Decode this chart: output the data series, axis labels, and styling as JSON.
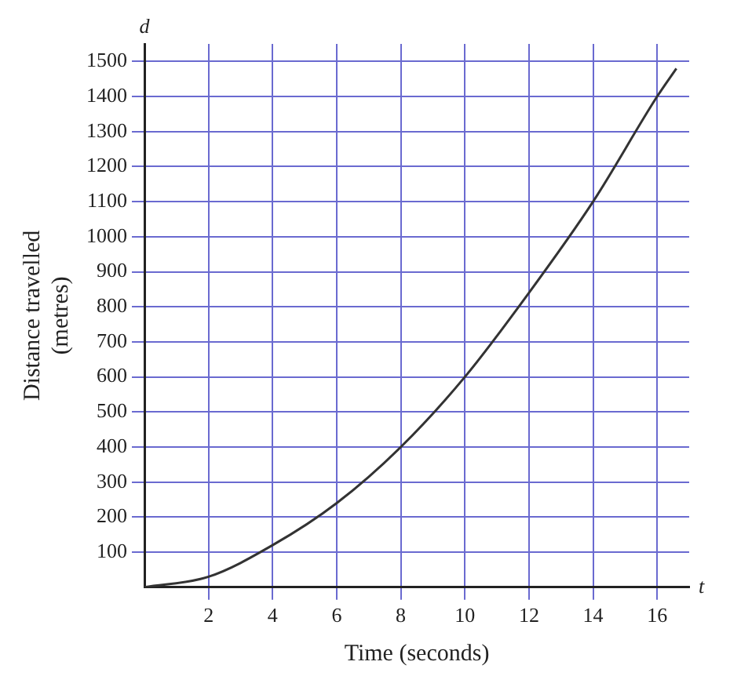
{
  "chart_data": {
    "type": "line",
    "xlabel": "Time (seconds)",
    "ylabel": "Distance travelled (metres)",
    "annotations": [
      "d",
      "t"
    ],
    "x": [
      0,
      2,
      4,
      6,
      8,
      10,
      12,
      14,
      16,
      16.6
    ],
    "series": [
      {
        "color": "#333333",
        "values": [
          0,
          30,
          120,
          240,
          400,
          600,
          840,
          1100,
          1400,
          1480
        ]
      }
    ],
    "xlim": [
      0,
      17
    ],
    "xticks": [
      2,
      4,
      6,
      8,
      10,
      12,
      14,
      16
    ],
    "ylim": [
      0,
      1550
    ],
    "yticks": [
      100,
      200,
      300,
      400,
      500,
      600,
      700,
      800,
      900,
      1000,
      1100,
      1200,
      1300,
      1400,
      1500
    ],
    "grid": true,
    "marker": "none",
    "line_style": "solid",
    "legend": false
  }
}
